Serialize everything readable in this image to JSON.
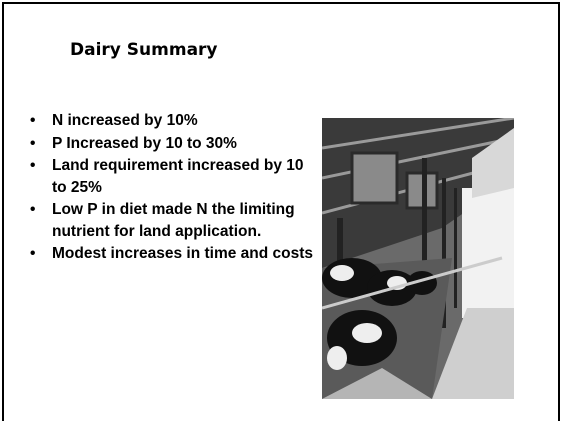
{
  "slide": {
    "title": "Dairy Summary",
    "bullets": [
      "N increased by 10%",
      "P Increased by 10 to 30%",
      "Land requirement increased by 10 to 25%",
      "Low P in diet made N the limiting nutrient for land application.",
      "Modest increases in time and costs"
    ]
  }
}
